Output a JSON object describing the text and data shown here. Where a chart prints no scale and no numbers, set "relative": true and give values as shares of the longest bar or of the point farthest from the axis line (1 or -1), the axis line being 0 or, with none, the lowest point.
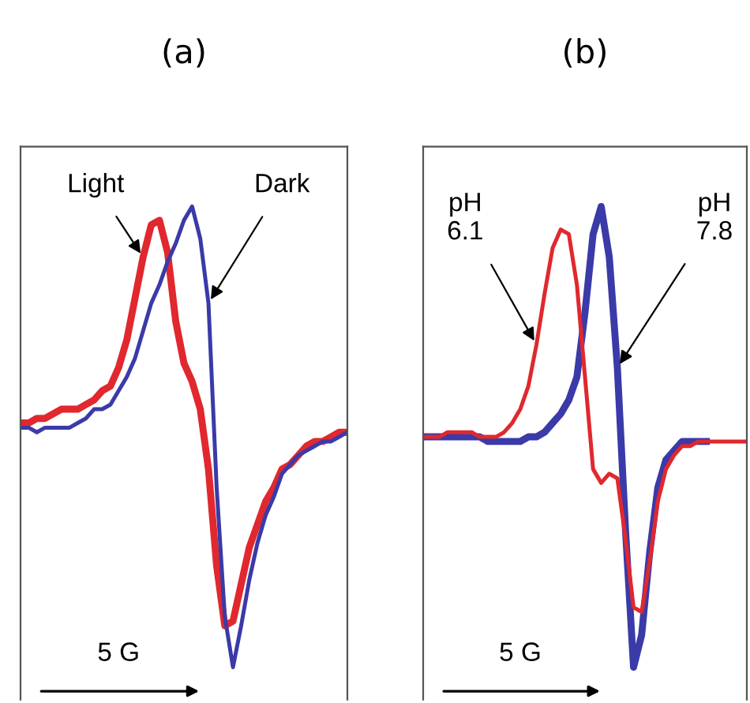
{
  "chart_data": [
    {
      "type": "line",
      "title": "(a)",
      "relative": true,
      "categories": [
        null,
        null,
        null,
        null,
        null,
        null,
        null,
        null,
        null,
        null,
        null,
        null,
        null,
        null,
        null,
        null,
        null,
        null,
        null,
        null,
        null,
        null,
        null,
        null,
        null,
        null,
        null,
        null,
        null,
        null,
        null,
        null,
        null,
        null,
        null,
        null,
        null,
        null,
        null,
        null,
        null
      ],
      "series": [
        {
          "color": "#e0282e",
          "values": [
            0.53,
            0.53,
            0.54,
            0.54,
            0.55,
            0.56,
            0.56,
            0.56,
            0.57,
            0.58,
            0.6,
            0.61,
            0.65,
            0.71,
            0.8,
            0.89,
            0.96,
            0.97,
            0.9,
            0.75,
            0.66,
            0.62,
            0.56,
            0.43,
            0.22,
            0.09,
            0.1,
            0.18,
            0.26,
            0.31,
            0.36,
            0.39,
            0.43,
            0.44,
            0.46,
            0.48,
            0.49,
            0.49,
            0.5,
            0.51,
            0.51
          ]
        },
        {
          "color": "#3a3aa8",
          "values": [
            0.52,
            0.52,
            0.51,
            0.52,
            0.52,
            0.52,
            0.52,
            0.53,
            0.54,
            0.56,
            0.56,
            0.57,
            0.6,
            0.63,
            0.67,
            0.73,
            0.79,
            0.83,
            0.88,
            0.92,
            0.97,
            1.0,
            0.93,
            0.79,
            0.39,
            0.11,
            0.0,
            0.09,
            0.19,
            0.27,
            0.33,
            0.37,
            0.42,
            0.44,
            0.46,
            0.47,
            0.48,
            0.49,
            0.49,
            0.5,
            0.51
          ]
        }
      ],
      "annotations": [
        "Light",
        "Dark",
        "5 G"
      ]
    },
    {
      "type": "line",
      "title": "(b)",
      "relative": true,
      "categories": [
        null,
        null,
        null,
        null,
        null,
        null,
        null,
        null,
        null,
        null,
        null,
        null,
        null,
        null,
        null,
        null,
        null,
        null,
        null,
        null,
        null,
        null,
        null,
        null,
        null,
        null,
        null,
        null,
        null,
        null,
        null,
        null,
        null,
        null,
        null,
        null,
        null,
        null,
        null,
        null,
        null
      ],
      "series": [
        {
          "color": "#3a3aa8",
          "values": [
            0.5,
            0.5,
            0.5,
            0.5,
            0.5,
            0.5,
            0.5,
            0.5,
            0.49,
            0.49,
            0.49,
            0.49,
            0.49,
            0.5,
            0.5,
            0.51,
            0.53,
            0.55,
            0.58,
            0.63,
            0.77,
            0.94,
            1.0,
            0.89,
            0.65,
            0.3,
            0.0,
            0.07,
            0.25,
            0.39,
            0.45,
            0.47,
            0.49,
            0.49,
            0.49,
            0.49,
            null,
            null,
            null,
            null,
            null
          ]
        },
        {
          "color": "#e0282e",
          "values": [
            0.5,
            0.5,
            0.5,
            0.51,
            0.51,
            0.51,
            0.51,
            0.5,
            0.5,
            0.5,
            0.51,
            0.53,
            0.56,
            0.61,
            0.7,
            0.81,
            0.91,
            0.95,
            0.94,
            0.83,
            0.63,
            0.43,
            0.4,
            0.42,
            0.41,
            0.28,
            0.13,
            0.12,
            0.23,
            0.36,
            0.43,
            0.46,
            0.48,
            0.48,
            0.49,
            0.49,
            0.49,
            0.49,
            0.49,
            0.49,
            0.49
          ]
        }
      ],
      "annotations": [
        "pH\n6.1",
        "pH\n7.8",
        "5 G"
      ]
    }
  ]
}
